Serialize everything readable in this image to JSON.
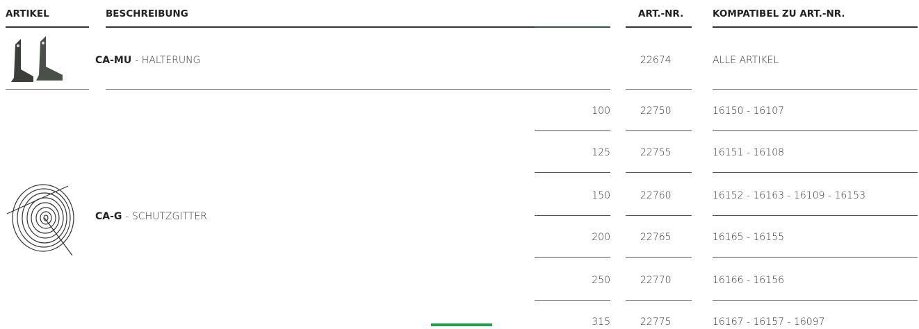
{
  "header": {
    "columns": [
      "ARTIKEL",
      "BESCHREIBUNG",
      "ART.-NR.",
      "KOMPATIBEL ZU ART.-NR."
    ]
  },
  "rows": [
    {
      "name": "CA-MU",
      "description": "- HALTERUNG",
      "art_nr": 22674,
      "compatible": "ALLE ARTIKEL"
    },
    {
      "name": "CA-G",
      "description": "- SCHUTZGITTER",
      "variants": [
        {
          "size": 100,
          "art_nr": 22750,
          "compatible": "16150 - 16107"
        },
        {
          "size": 125,
          "art_nr": 22755,
          "compatible": "16151 - 16108"
        },
        {
          "size": 150,
          "art_nr": 22760,
          "compatible": "16152 - 16163 - 16109 - 16153"
        },
        {
          "size": 200,
          "art_nr": 22765,
          "compatible": "16165 - 16155"
        },
        {
          "size": 250,
          "art_nr": 22770,
          "compatible": "16166 - 16156"
        },
        {
          "size": 315,
          "art_nr": 22775,
          "compatible": "16167 - 16157 - 16097"
        }
      ]
    }
  ]
}
